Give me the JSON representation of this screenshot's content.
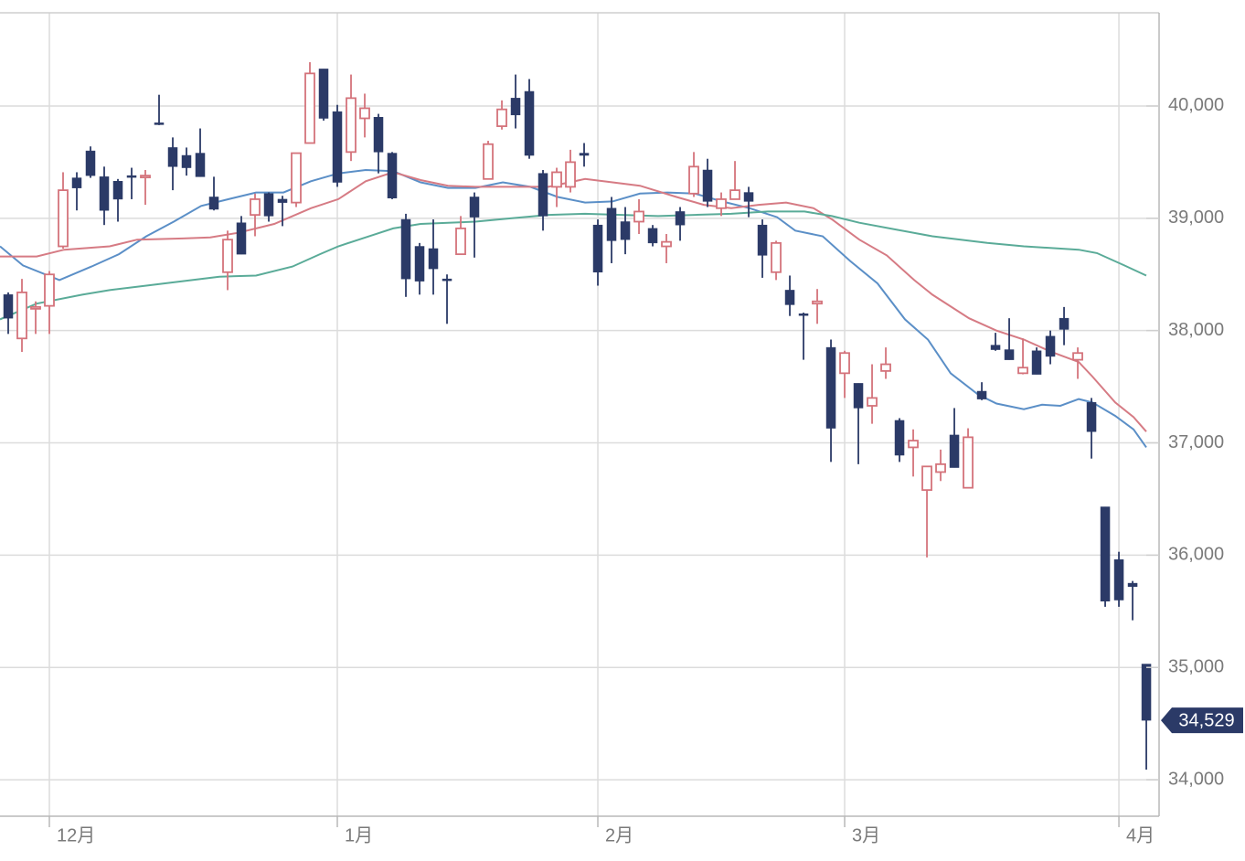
{
  "chart_data": {
    "type": "candlestick",
    "up_color": "#d4737b",
    "down_color": "#2b3a67",
    "open": [
      38320,
      37930,
      38200,
      38220,
      38750,
      39360,
      39600,
      39370,
      39330,
      39380,
      39370,
      39850,
      39630,
      39560,
      39580,
      39190,
      38520,
      38960,
      39030,
      39220,
      39170,
      39140,
      39670,
      40330,
      39950,
      39590,
      39890,
      39900,
      39580,
      38990,
      38750,
      38730,
      38460,
      38680,
      39190,
      39350,
      39820,
      40070,
      40130,
      39400,
      39280,
      39280,
      39580,
      38940,
      39090,
      38970,
      38970,
      38910,
      38750,
      39060,
      39220,
      39430,
      39090,
      39170,
      39230,
      38940,
      38520,
      38360,
      38150,
      38240,
      37850,
      37620,
      37530,
      37330,
      37640,
      37200,
      36960,
      36580,
      36740,
      37070,
      36600,
      37460,
      37870,
      37830,
      37620,
      37820,
      37950,
      38110,
      37740,
      37360,
      36430,
      35960,
      35750,
      35030
    ],
    "high": [
      38340,
      38460,
      38260,
      38530,
      39410,
      39410,
      39640,
      39460,
      39350,
      39450,
      39430,
      40100,
      39720,
      39630,
      39800,
      39370,
      38890,
      39020,
      39220,
      39230,
      39200,
      39580,
      40390,
      40330,
      40010,
      40280,
      40110,
      39930,
      39590,
      39040,
      38780,
      38990,
      38500,
      39020,
      39230,
      39690,
      40050,
      40280,
      40240,
      39430,
      39450,
      39610,
      39670,
      38990,
      39190,
      39100,
      39170,
      38940,
      38860,
      39100,
      39590,
      39530,
      39230,
      39510,
      39280,
      38990,
      38800,
      38490,
      38160,
      38370,
      37920,
      37820,
      37530,
      37700,
      37850,
      37220,
      37120,
      36790,
      36940,
      37310,
      37130,
      37540,
      37980,
      38110,
      37930,
      37850,
      38000,
      38210,
      37850,
      37400,
      36430,
      36030,
      35770,
      35030
    ],
    "low": [
      37970,
      37810,
      37970,
      37970,
      38730,
      39070,
      39360,
      38940,
      38970,
      39170,
      39120,
      39830,
      39250,
      39380,
      39370,
      39070,
      38360,
      38680,
      38840,
      38970,
      38930,
      39100,
      39670,
      39870,
      39280,
      39510,
      39720,
      39400,
      39170,
      38300,
      38320,
      38320,
      38060,
      38680,
      38650,
      39350,
      39790,
      39800,
      39530,
      38890,
      39100,
      39230,
      39460,
      38400,
      38600,
      38680,
      38860,
      38750,
      38600,
      38800,
      39190,
      39100,
      39020,
      39170,
      39010,
      38470,
      38450,
      38130,
      37740,
      38060,
      36830,
      37400,
      36810,
      37170,
      37570,
      36830,
      36700,
      35980,
      36660,
      36780,
      36600,
      37380,
      37820,
      37740,
      37610,
      37610,
      37700,
      37870,
      37570,
      36860,
      35540,
      35540,
      35420,
      34090
    ],
    "close": [
      38110,
      38340,
      38210,
      38500,
      39250,
      39270,
      39380,
      39070,
      39170,
      39370,
      39380,
      39840,
      39460,
      39450,
      39370,
      39080,
      38810,
      38680,
      39170,
      39020,
      39140,
      39580,
      40290,
      39890,
      39320,
      40070,
      39980,
      39590,
      39180,
      38460,
      38440,
      38550,
      38450,
      38910,
      39010,
      39660,
      39970,
      39920,
      39560,
      39020,
      39410,
      39500,
      39560,
      38520,
      38800,
      38810,
      39060,
      38780,
      38790,
      38940,
      39460,
      39150,
      39170,
      39250,
      39150,
      38670,
      38780,
      38230,
      38140,
      38260,
      37130,
      37800,
      37310,
      37400,
      37700,
      36890,
      37020,
      36790,
      36810,
      36780,
      37050,
      37390,
      37830,
      37740,
      37670,
      37610,
      37770,
      38010,
      37800,
      37100,
      35590,
      35600,
      35720,
      34529
    ],
    "lines": [
      {
        "color": "#5b8fc7",
        "x": [
          -0.6,
          1.07,
          3.73,
          6.07,
          8.07,
          10.07,
          12.07,
          14.07,
          16.07,
          18.07,
          20.07,
          22.07,
          24.07,
          26.07,
          28.07,
          30.07,
          32.07,
          34.07,
          36.07,
          38.07,
          40.07,
          42.07,
          44.07,
          46.07,
          48.07,
          50.07,
          52.07,
          54.07,
          56.07,
          57.4,
          59.4,
          61.4,
          63.4,
          65.4,
          67.07,
          68.73,
          70.73,
          72.07,
          74.07,
          75.4,
          76.73,
          78.07,
          79.07,
          80.73,
          82.07,
          83
        ],
        "values": [
          38750,
          38580,
          38450,
          38570,
          38680,
          38840,
          38970,
          39110,
          39170,
          39230,
          39230,
          39330,
          39400,
          39430,
          39420,
          39320,
          39270,
          39270,
          39320,
          39280,
          39190,
          39140,
          39150,
          39220,
          39230,
          39220,
          39150,
          39090,
          39010,
          38890,
          38840,
          38620,
          38420,
          38100,
          37920,
          37620,
          37430,
          37350,
          37300,
          37340,
          37330,
          37390,
          37360,
          37240,
          37120,
          36960
        ]
      },
      {
        "color": "#d67b84",
        "x": [
          -0.6,
          2.07,
          4.07,
          7.4,
          9.4,
          12.73,
          14.73,
          16.73,
          19.4,
          22.07,
          24.07,
          26.07,
          28.07,
          30.07,
          32.07,
          34.07,
          36.73,
          39.4,
          42.07,
          44.07,
          46.07,
          48.73,
          50.73,
          52.73,
          54.73,
          56.73,
          58.73,
          60.07,
          62.07,
          64.07,
          66.07,
          67.4,
          70.07,
          72.07,
          74.07,
          76.07,
          78.07,
          79.07,
          80.73,
          82.07,
          83
        ],
        "values": [
          38660,
          38660,
          38720,
          38750,
          38810,
          38820,
          38830,
          38870,
          38950,
          39090,
          39170,
          39330,
          39410,
          39340,
          39290,
          39280,
          39280,
          39280,
          39350,
          39320,
          39290,
          39190,
          39120,
          39090,
          39120,
          39140,
          39090,
          38990,
          38810,
          38670,
          38450,
          38320,
          38110,
          38000,
          37920,
          37810,
          37720,
          37590,
          37360,
          37230,
          37100
        ]
      },
      {
        "color": "#5aab98",
        "x": [
          -0.6,
          2.07,
          5.4,
          7.4,
          10.07,
          12.73,
          15.4,
          18.07,
          20.73,
          22.73,
          24.07,
          26.07,
          28.07,
          30.07,
          32.07,
          34.07,
          36.73,
          39.4,
          42.07,
          44.73,
          47.4,
          50.07,
          52.73,
          55.4,
          58.07,
          60.07,
          62.07,
          64.73,
          67.4,
          71.4,
          74.07,
          78.07,
          79.4,
          81.4,
          83
        ],
        "values": [
          38100,
          38240,
          38320,
          38360,
          38400,
          38440,
          38480,
          38490,
          38570,
          38680,
          38750,
          38830,
          38910,
          38950,
          38960,
          38970,
          39000,
          39030,
          39040,
          39030,
          39020,
          39030,
          39040,
          39060,
          39060,
          39020,
          38960,
          38900,
          38840,
          38780,
          38750,
          38720,
          38690,
          38580,
          38490
        ]
      }
    ],
    "last_price": {
      "value": 34529,
      "label": "34,529"
    },
    "xlim": [
      -0.6,
      83.93
    ],
    "xticks": [
      {
        "value": 3,
        "label": "12月"
      },
      {
        "value": 24,
        "label": "1月"
      },
      {
        "value": 43,
        "label": "2月"
      },
      {
        "value": 61,
        "label": "3月"
      },
      {
        "value": 81,
        "label": "4月"
      }
    ],
    "ylim": [
      33675,
      40830
    ],
    "yticks": [
      {
        "value": 34000,
        "label": "34,000"
      },
      {
        "value": 35000,
        "label": "35,000"
      },
      {
        "value": 36000,
        "label": "36,000"
      },
      {
        "value": 37000,
        "label": "37,000"
      },
      {
        "value": 38000,
        "label": "38,000"
      },
      {
        "value": 39000,
        "label": "39,000"
      },
      {
        "value": 40000,
        "label": "40,000"
      }
    ],
    "grid": true
  }
}
